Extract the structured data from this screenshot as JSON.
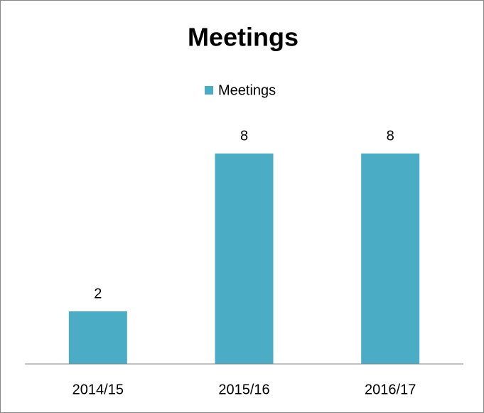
{
  "chart_data": {
    "type": "bar",
    "title": "Meetings",
    "categories": [
      "2014/15",
      "2015/16",
      "2016/17"
    ],
    "series": [
      {
        "name": "Meetings",
        "color": "#4bacc6",
        "values": [
          2,
          8,
          8
        ]
      }
    ],
    "legend": "top",
    "grid": false
  }
}
